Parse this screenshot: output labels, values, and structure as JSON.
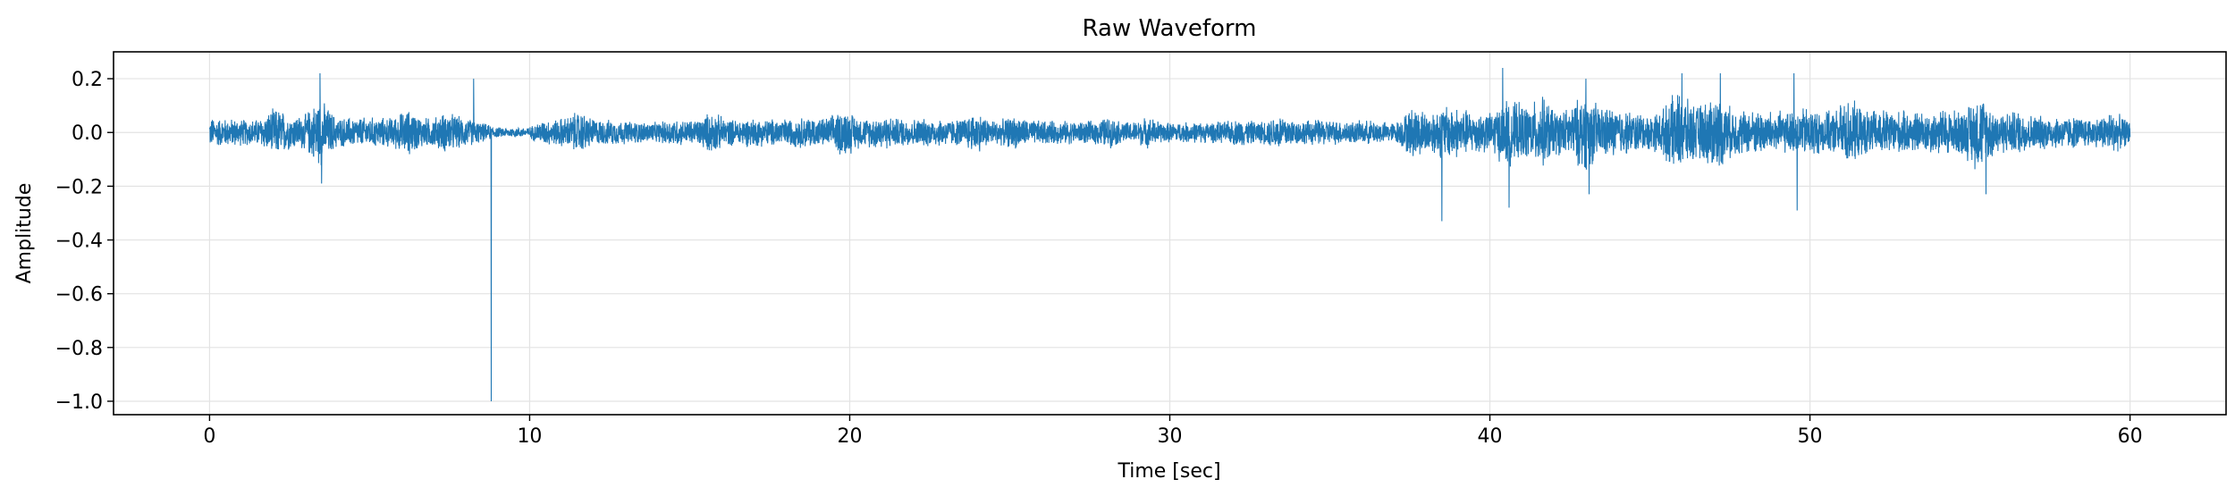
{
  "chart_data": {
    "type": "line",
    "title": "Raw Waveform",
    "xlabel": "Time [sec]",
    "ylabel": "Amplitude",
    "xlim": [
      -3,
      63
    ],
    "ylim": [
      -1.05,
      0.3
    ],
    "xticks": [
      0,
      10,
      20,
      30,
      40,
      50,
      60
    ],
    "xtick_labels": [
      "0",
      "10",
      "20",
      "30",
      "40",
      "50",
      "60"
    ],
    "yticks": [
      0.2,
      0.0,
      -0.2,
      -0.4,
      -0.6,
      -0.8,
      -1.0
    ],
    "ytick_labels": [
      "0.2",
      "0.0",
      "−0.2",
      "−0.4",
      "−0.6",
      "−0.8",
      "−1.0"
    ],
    "grid": true,
    "line_color": "#1f77b4",
    "series": [
      {
        "x": [
          0,
          60
        ],
        "y_range": [
          -1.0,
          0.24
        ],
        "baseline": 0.0,
        "envelope_profile": [
          [
            0,
            0.06
          ],
          [
            1,
            0.05
          ],
          [
            2,
            0.06
          ],
          [
            3,
            0.07
          ],
          [
            3.5,
            0.12
          ],
          [
            4,
            0.06
          ],
          [
            6,
            0.06
          ],
          [
            8,
            0.06
          ],
          [
            9,
            0.02
          ],
          [
            10,
            0.02
          ],
          [
            11,
            0.06
          ],
          [
            14,
            0.04
          ],
          [
            15,
            0.05
          ],
          [
            20,
            0.06
          ],
          [
            25,
            0.05
          ],
          [
            30,
            0.04
          ],
          [
            35,
            0.05
          ],
          [
            37,
            0.04
          ],
          [
            38.5,
            0.1
          ],
          [
            40,
            0.08
          ],
          [
            40.5,
            0.13
          ],
          [
            42,
            0.08
          ],
          [
            43,
            0.12
          ],
          [
            45,
            0.07
          ],
          [
            46,
            0.12
          ],
          [
            48,
            0.09
          ],
          [
            50,
            0.08
          ],
          [
            52,
            0.09
          ],
          [
            54,
            0.08
          ],
          [
            55,
            0.1
          ],
          [
            57,
            0.07
          ],
          [
            60,
            0.05
          ]
        ],
        "spikes": [
          [
            3.45,
            0.22
          ],
          [
            3.5,
            -0.19
          ],
          [
            8.25,
            0.2
          ],
          [
            8.8,
            -1.0
          ],
          [
            38.5,
            -0.33
          ],
          [
            40.4,
            0.24
          ],
          [
            40.6,
            -0.28
          ],
          [
            43.0,
            0.2
          ],
          [
            43.1,
            -0.23
          ],
          [
            46.0,
            0.22
          ],
          [
            47.2,
            0.22
          ],
          [
            49.5,
            0.22
          ],
          [
            49.6,
            -0.29
          ],
          [
            55.5,
            -0.23
          ]
        ]
      }
    ]
  }
}
